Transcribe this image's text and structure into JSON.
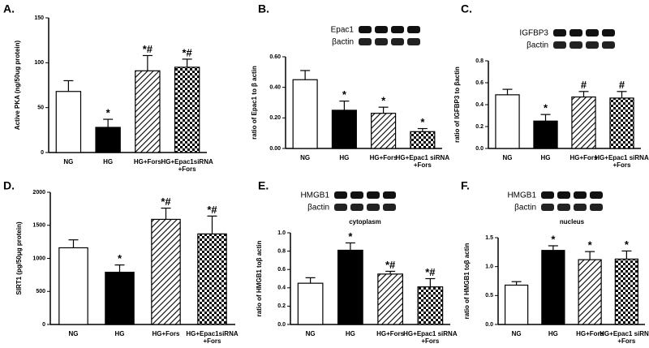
{
  "chart_data": [
    {
      "type": "bar",
      "label": "A.",
      "ylabel": "Active PKA (ng/50ug protein)",
      "categories": [
        "NG",
        "HG",
        "HG+Fors",
        "HG+Epac1siRNA\n+Fors"
      ],
      "values": [
        68,
        28,
        91,
        95
      ],
      "errors": [
        12,
        9,
        17,
        9
      ],
      "significance": [
        "",
        "*",
        "*#",
        "*#"
      ],
      "patterns": [
        "white",
        "black",
        "hatch",
        "checker"
      ],
      "ylim": [
        0,
        150
      ],
      "yticks": [
        0,
        50,
        100,
        150
      ]
    },
    {
      "type": "bar",
      "label": "B.",
      "ylabel": "ratio of Epac1 to β actin",
      "blot": [
        "Epac1",
        "βactin"
      ],
      "categories": [
        "NG",
        "HG",
        "HG+Fors",
        "HG+Epac1 siRNA\n+Fors"
      ],
      "values": [
        0.45,
        0.25,
        0.23,
        0.11
      ],
      "errors": [
        0.06,
        0.06,
        0.04,
        0.02
      ],
      "significance": [
        "",
        "*",
        "*",
        "*"
      ],
      "patterns": [
        "white",
        "black",
        "hatch",
        "checker"
      ],
      "ylim": [
        0,
        0.6
      ],
      "yticks": [
        {
          "value": 0,
          "label": "0.00"
        },
        {
          "value": 0.2,
          "label": "0.20"
        },
        {
          "value": 0.4,
          "label": "0.40"
        },
        {
          "value": 0.6,
          "label": "0.60"
        }
      ]
    },
    {
      "type": "bar",
      "label": "C.",
      "ylabel": "ratio of IGFBP3 to βactin",
      "blot": [
        "IGFBP3",
        "βactin"
      ],
      "categories": [
        "NG",
        "HG",
        "HG+Fors",
        "HG+Epac1 siRNA\n+Fors"
      ],
      "values": [
        0.49,
        0.25,
        0.47,
        0.46
      ],
      "errors": [
        0.05,
        0.06,
        0.05,
        0.06
      ],
      "significance": [
        "",
        "*",
        "#",
        "#"
      ],
      "patterns": [
        "white",
        "black",
        "hatch",
        "checker"
      ],
      "ylim": [
        0,
        0.8
      ],
      "yticks": [
        {
          "value": 0,
          "label": "0.0"
        },
        {
          "value": 0.2,
          "label": "0.2"
        },
        {
          "value": 0.4,
          "label": "0.4"
        },
        {
          "value": 0.6,
          "label": "0.6"
        },
        {
          "value": 0.8,
          "label": "0.8"
        }
      ]
    },
    {
      "type": "bar",
      "label": "D.",
      "ylabel": "SIRT1 (pg/50μg protein)",
      "categories": [
        "NG",
        "HG",
        "HG+Fors",
        "HG+Epac1siRNA\n+Fors"
      ],
      "values": [
        1160,
        790,
        1590,
        1370
      ],
      "errors": [
        120,
        110,
        170,
        270
      ],
      "significance": [
        "",
        "*",
        "*#",
        "*#"
      ],
      "patterns": [
        "white",
        "black",
        "hatch",
        "checker"
      ],
      "ylim": [
        0,
        2000
      ],
      "yticks": [
        0,
        500,
        1000,
        1500,
        2000
      ]
    },
    {
      "type": "bar",
      "label": "E.",
      "ylabel": "ratio of HMGB1 toβ actin",
      "blot": [
        "HMGB1",
        "βactin",
        "cytoplasm"
      ],
      "categories": [
        "NG",
        "HG",
        "HG+Fors",
        "HG+Epac1 siRNA\n+Fors"
      ],
      "values": [
        0.45,
        0.81,
        0.55,
        0.41
      ],
      "errors": [
        0.06,
        0.08,
        0.03,
        0.09
      ],
      "significance": [
        "",
        "*",
        "*#",
        "*#"
      ],
      "patterns": [
        "white",
        "black",
        "hatch",
        "checker"
      ],
      "ylim": [
        0,
        1.0
      ],
      "yticks": [
        {
          "value": 0,
          "label": "0.0"
        },
        {
          "value": 0.2,
          "label": "0.2"
        },
        {
          "value": 0.4,
          "label": "0.4"
        },
        {
          "value": 0.6,
          "label": "0.6"
        },
        {
          "value": 0.8,
          "label": "0.8"
        },
        {
          "value": 1.0,
          "label": "1.0"
        }
      ]
    },
    {
      "type": "bar",
      "label": "F.",
      "ylabel": "ratio of HMGB1 toβ actin",
      "blot": [
        "HMGB1",
        "βactin",
        "nucleus"
      ],
      "categories": [
        "NG",
        "HG",
        "HG+Fors",
        "HG+Epac1 siRNA\n+Fors"
      ],
      "values": [
        0.68,
        1.28,
        1.12,
        1.13
      ],
      "errors": [
        0.06,
        0.08,
        0.14,
        0.14
      ],
      "significance": [
        "",
        "*",
        "*",
        "*"
      ],
      "patterns": [
        "white",
        "black",
        "hatch",
        "checker"
      ],
      "ylim": [
        0,
        1.5
      ],
      "yticks": [
        {
          "value": 0,
          "label": "0.0"
        },
        {
          "value": 0.5,
          "label": "0.5"
        },
        {
          "value": 1.0,
          "label": "1.0"
        },
        {
          "value": 1.5,
          "label": "1.5"
        }
      ]
    }
  ]
}
